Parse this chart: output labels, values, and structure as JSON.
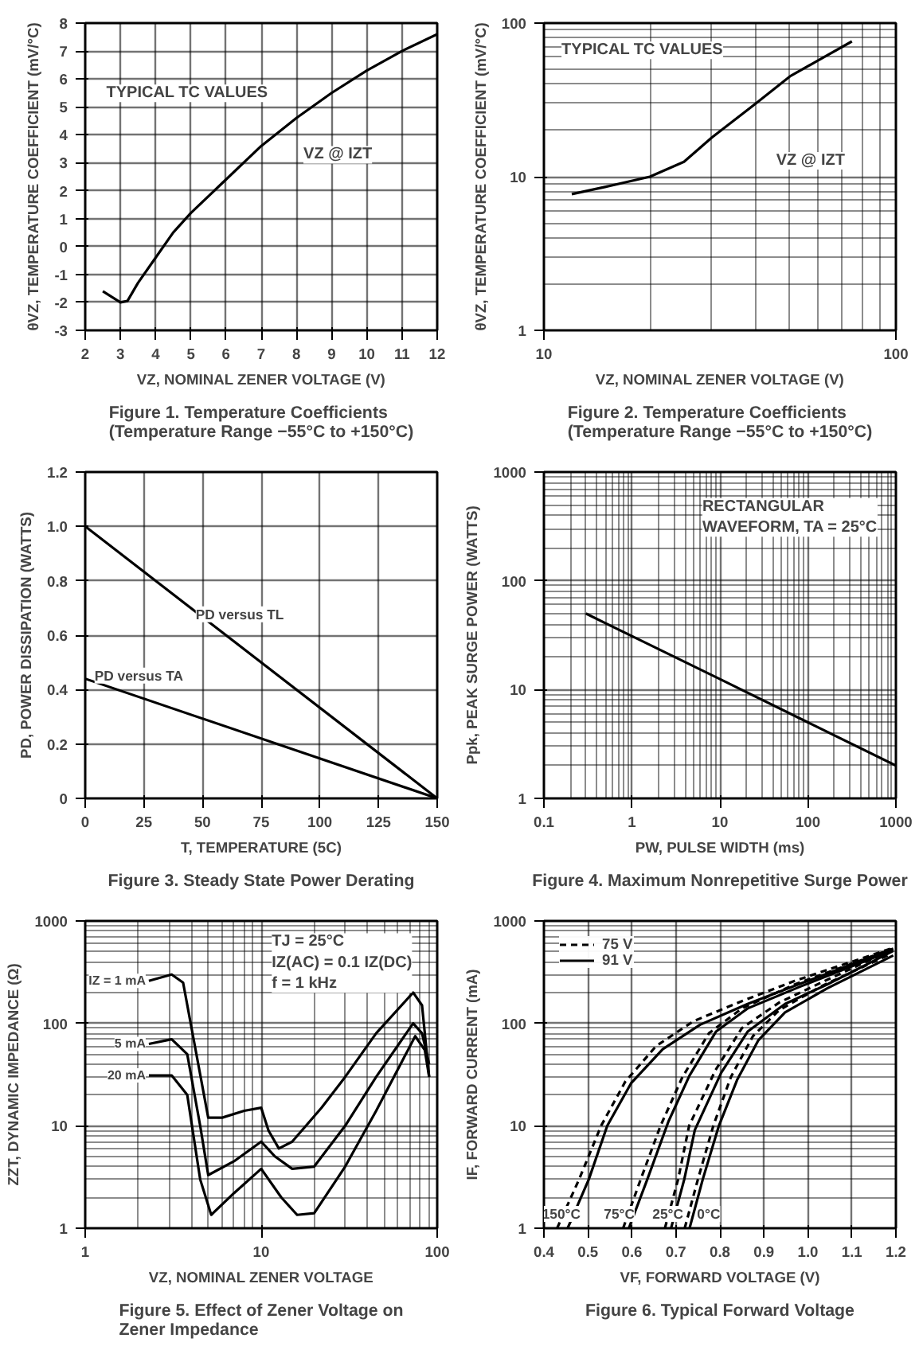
{
  "chart_data": [
    {
      "type": "line",
      "title": "Figure 1. Temperature Coefficients\n(Temperature Range −55°C to +150°C)",
      "xlabel": "VZ, NOMINAL ZENER VOLTAGE (V)",
      "ylabel": "θVZ, TEMPERATURE COEFFICIENT (mV/°C)",
      "xlim": [
        2,
        12
      ],
      "ylim": [
        -3,
        8
      ],
      "xticks": [
        2,
        3,
        4,
        5,
        6,
        7,
        8,
        9,
        10,
        11,
        12
      ],
      "yticks": [
        -3,
        -2,
        -1,
        0,
        1,
        2,
        3,
        4,
        5,
        6,
        7,
        8
      ],
      "grid": true,
      "annotations": [
        "TYPICAL TC VALUES",
        "VZ @ IZT"
      ],
      "series": [
        {
          "color": "#000000",
          "x": [
            2.5,
            3,
            3.2,
            3.5,
            4,
            4.5,
            5,
            6,
            7,
            8,
            9,
            10,
            11,
            12
          ],
          "values": [
            -1.6,
            -2.0,
            -1.95,
            -1.3,
            -0.4,
            0.5,
            1.2,
            2.4,
            3.6,
            4.6,
            5.5,
            6.3,
            7.0,
            7.6
          ]
        }
      ]
    },
    {
      "type": "line",
      "title": "Figure 2. Temperature Coefficients\n(Temperature Range −55°C to +150°C)",
      "xlabel": "VZ, NOMINAL ZENER VOLTAGE (V)",
      "ylabel": "θVZ, TEMPERATURE COEFFICIENT (mV/°C)",
      "xlim": [
        10,
        100
      ],
      "ylim": [
        1,
        100
      ],
      "xticks": [
        10,
        100
      ],
      "yticks": [
        1,
        10,
        100
      ],
      "log": "xy",
      "grid": true,
      "annotations": [
        "TYPICAL TC VALUES",
        "VZ @ IZT"
      ],
      "series": [
        {
          "color": "#000000",
          "x": [
            12,
            15,
            20,
            25,
            30,
            40,
            50,
            60,
            75
          ],
          "values": [
            7.7,
            8.6,
            10,
            12.5,
            18,
            30,
            45,
            57,
            76
          ]
        }
      ]
    },
    {
      "type": "line",
      "title": "Figure 3. Steady State Power Derating",
      "xlabel": "T, TEMPERATURE (5C)",
      "ylabel": "PD, POWER DISSIPATION (WATTS)",
      "xlim": [
        0,
        150
      ],
      "ylim": [
        0,
        1.2
      ],
      "xticks": [
        0,
        25,
        50,
        75,
        100,
        125,
        150
      ],
      "yticks": [
        0,
        0.2,
        0.4,
        0.6,
        0.8,
        {
          "value": 1.0,
          "label": "1.0"
        },
        1.2
      ],
      "grid": true,
      "annotations": [
        {
          "text": "PD versus TL",
          "x": 55,
          "y": 0.63
        },
        {
          "text": "PD versus TA",
          "x": 12,
          "y": 0.405
        }
      ],
      "series": [
        {
          "color": "#000000",
          "x": [
            0,
            150
          ],
          "values": [
            1.0,
            0
          ]
        },
        {
          "color": "#000000",
          "x": [
            0,
            150
          ],
          "values": [
            0.44,
            0
          ]
        }
      ]
    },
    {
      "type": "line",
      "title": "Figure 4. Maximum Nonrepetitive Surge Power",
      "xlabel": "PW, PULSE WIDTH (ms)",
      "ylabel": "Ppk, PEAK SURGE POWER (WATTS)",
      "xlim": [
        0.1,
        1000
      ],
      "ylim": [
        1,
        1000
      ],
      "xticks": [
        0.1,
        1,
        10,
        100,
        1000
      ],
      "yticks": [
        1,
        10,
        100,
        1000
      ],
      "log": "xy",
      "grid": true,
      "annotations": [
        "RECTANGULAR\nWAVEFORM, TA = 25°C"
      ],
      "series": [
        {
          "color": "#000000",
          "x": [
            0.3,
            1,
            10,
            100,
            1000
          ],
          "values": [
            50,
            31,
            12.5,
            5,
            2
          ]
        }
      ]
    },
    {
      "type": "line",
      "title": "Figure 5. Effect of Zener Voltage on\nZener Impedance",
      "xlabel": "VZ, NOMINAL ZENER VOLTAGE",
      "ylabel": "ZZT, DYNAMIC IMPEDANCE (Ω)",
      "xlim": [
        1,
        100
      ],
      "ylim": [
        1,
        1000
      ],
      "xticks": [
        1,
        10,
        100
      ],
      "yticks": [
        1,
        10,
        100,
        1000
      ],
      "log": "xy",
      "grid": true,
      "annotations": [
        "TJ = 25°C\nIZ(AC) = 0.1 IZ(DC)\nf = 1 kHz"
      ],
      "series": [
        {
          "name": "IZ = 1 mA",
          "color": "#000000",
          "x": [
            2.3,
            3.1,
            3.6,
            4.2,
            5,
            6,
            8,
            10,
            11,
            12.6,
            15,
            22,
            30,
            45,
            73,
            82,
            90
          ],
          "values": [
            260,
            300,
            250,
            60,
            12,
            12,
            14,
            15,
            9,
            6,
            7,
            15,
            30,
            80,
            200,
            150,
            30
          ]
        },
        {
          "name": "5 mA",
          "color": "#000000",
          "x": [
            2.3,
            3.1,
            3.8,
            4.5,
            5,
            7,
            10,
            12,
            15,
            20,
            30,
            45,
            73,
            82,
            90
          ],
          "values": [
            63,
            70,
            50,
            10,
            3.3,
            4.5,
            7,
            5,
            3.8,
            4,
            10,
            30,
            100,
            80,
            40
          ]
        },
        {
          "name": "20 mA",
          "color": "#000000",
          "x": [
            2.3,
            3.1,
            3.8,
            4.5,
            5.2,
            7,
            10,
            13,
            16,
            20,
            30,
            45,
            75,
            85,
            90
          ],
          "values": [
            31,
            31,
            20,
            3,
            1.35,
            2.2,
            3.8,
            2,
            1.35,
            1.4,
            4,
            14,
            75,
            55,
            30
          ]
        }
      ]
    },
    {
      "type": "line",
      "title": "Figure 6. Typical Forward Voltage",
      "xlabel": "VF, FORWARD VOLTAGE (V)",
      "ylabel": "IF, FORWARD CURRENT (mA)",
      "xlim": [
        0.4,
        1.2
      ],
      "ylim": [
        1,
        1000
      ],
      "xticks": [
        0.4,
        0.5,
        0.6,
        0.7,
        0.8,
        0.9,
        {
          "value": 1.0,
          "label": "1.0"
        },
        1.1,
        1.2
      ],
      "yticks": [
        1,
        10,
        100,
        1000
      ],
      "log": "y",
      "grid": true,
      "legend": "top left",
      "annotations": [
        {
          "text": "150°C",
          "x": 0.454,
          "y": 1
        },
        {
          "text": "75°C",
          "x": 0.593,
          "y": 1
        },
        {
          "text": "25°C",
          "x": 0.689,
          "y": 1
        },
        {
          "text": "0°C",
          "x": 0.731,
          "y": 1
        }
      ],
      "series": [
        {
          "name": "75 V",
          "color": "#000000",
          "line_style": "dashed",
          "x": [
            0.43,
            0.48,
            0.53,
            0.585,
            0.655,
            0.74,
            0.85,
            0.97,
            1.19
          ],
          "values": [
            1,
            3,
            10,
            27,
            60,
            105,
            165,
            260,
            540
          ]
        },
        {
          "name": "91 V",
          "color": "#000000",
          "line_style": "solid",
          "x": [
            0.454,
            0.502,
            0.544,
            0.598,
            0.67,
            0.755,
            0.863,
            0.984,
            1.194
          ],
          "values": [
            1,
            3,
            10,
            26,
            56,
            97,
            155,
            245,
            537
          ]
        },
        {
          "color": "#000000",
          "line_style": "dashed",
          "x": [
            0.58,
            0.62,
            0.665,
            0.715,
            0.775,
            0.85,
            0.97,
            1.19
          ],
          "values": [
            1,
            3,
            10,
            30,
            80,
            140,
            240,
            530
          ]
        },
        {
          "color": "#000000",
          "line_style": "solid",
          "x": [
            0.593,
            0.635,
            0.683,
            0.731,
            0.791,
            0.863,
            0.984,
            1.194
          ],
          "values": [
            1,
            3,
            11,
            31,
            83,
            140,
            230,
            520
          ]
        },
        {
          "color": "#000000",
          "line_style": "dashed",
          "x": [
            0.675,
            0.705,
            0.73,
            0.79,
            0.85,
            0.935,
            1.03,
            1.19
          ],
          "values": [
            1,
            3,
            10,
            35,
            90,
            160,
            250,
            520
          ]
        },
        {
          "color": "#000000",
          "line_style": "solid",
          "x": [
            0.689,
            0.719,
            0.743,
            0.803,
            0.863,
            0.948,
            1.044,
            1.194
          ],
          "values": [
            1,
            3,
            9.1,
            33,
            83,
            155,
            240,
            510
          ]
        },
        {
          "color": "#000000",
          "line_style": "dashed",
          "x": [
            0.72,
            0.75,
            0.785,
            0.825,
            0.875,
            0.935,
            1.03,
            1.19
          ],
          "values": [
            1,
            3,
            10,
            30,
            75,
            135,
            230,
            480
          ]
        },
        {
          "color": "#000000",
          "line_style": "solid",
          "x": [
            0.731,
            0.761,
            0.797,
            0.839,
            0.887,
            0.948,
            1.044,
            1.194
          ],
          "values": [
            1,
            3,
            9.8,
            28,
            68,
            128,
            220,
            460
          ]
        }
      ]
    }
  ]
}
